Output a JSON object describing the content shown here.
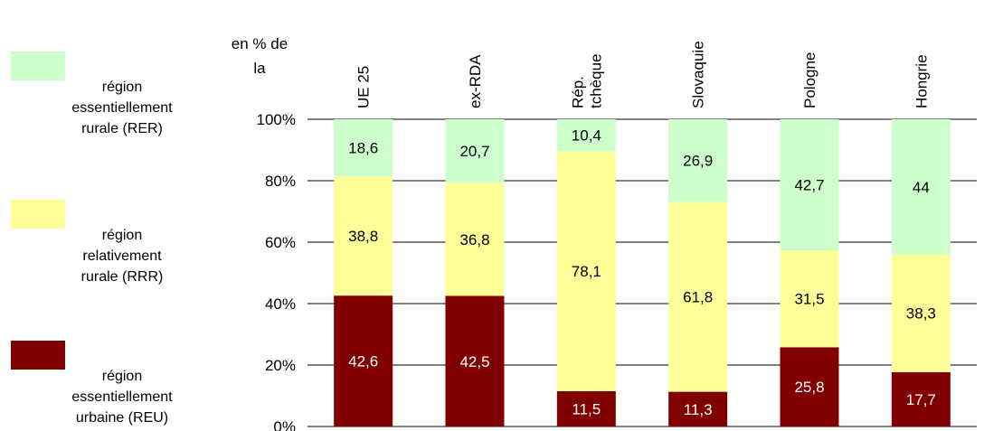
{
  "chart_data": {
    "type": "bar",
    "stacked": true,
    "orientation": "vertical",
    "ylabel": [
      "en % de",
      "la"
    ],
    "ylim": [
      0,
      100
    ],
    "yticks": [
      "0%",
      "20%",
      "40%",
      "60%",
      "80%",
      "100%"
    ],
    "grid": "horizontal",
    "legend_position": "left",
    "categories": [
      [
        "UE 25"
      ],
      [
        "ex-RDA"
      ],
      [
        "Rép.",
        "tchèque"
      ],
      [
        "Slovaquie"
      ],
      [
        "Pologne"
      ],
      [
        "Hongrie"
      ]
    ],
    "series": [
      {
        "name": [
          "région",
          "essentiellement",
          "urbaine (REU)"
        ],
        "color": "#800000",
        "label_color": "#ffffff",
        "values": [
          42.6,
          42.5,
          11.5,
          11.3,
          25.8,
          17.7
        ],
        "labels": [
          "42,6",
          "42,5",
          "11,5",
          "11,3",
          "25,8",
          "17,7"
        ]
      },
      {
        "name": [
          "région",
          "relativement",
          "rurale (RRR)"
        ],
        "color": "#ffff99",
        "label_color": "#000000",
        "values": [
          38.8,
          36.8,
          78.1,
          61.8,
          31.5,
          38.3
        ],
        "labels": [
          "38,8",
          "36,8",
          "78,1",
          "61,8",
          "31,5",
          "38,3"
        ]
      },
      {
        "name": [
          "région",
          "essentiellement",
          "rurale (RER)"
        ],
        "color": "#ccffcc",
        "label_color": "#000000",
        "values": [
          18.6,
          20.7,
          10.4,
          26.9,
          42.7,
          44.0
        ],
        "labels": [
          "18,6",
          "20,7",
          "10,4",
          "26,9",
          "42,7",
          "44"
        ]
      }
    ]
  }
}
